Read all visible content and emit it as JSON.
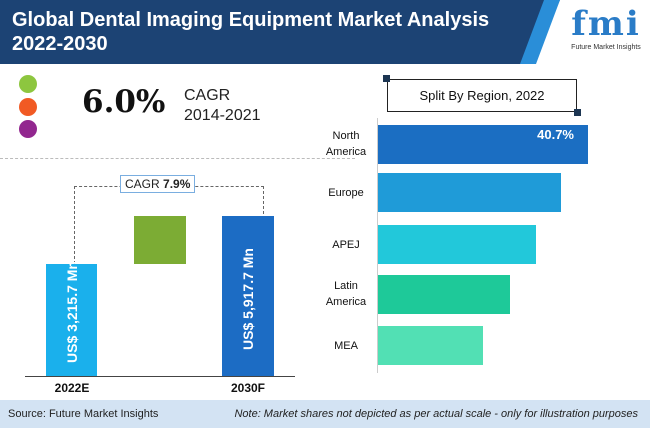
{
  "header": {
    "title": "Global Dental Imaging Equipment Market Analysis 2022-2030"
  },
  "logo": {
    "text": "fmi",
    "subtitle": "Future Market Insights"
  },
  "legend_dots": [
    "#8dc63f",
    "#f15a24",
    "#92278f"
  ],
  "cagr_hist": {
    "value": "6.0%",
    "label": "CAGR",
    "period": "2014-2021"
  },
  "chart_data": [
    {
      "type": "bar",
      "categories": [
        "2022E",
        "2030F"
      ],
      "values": [
        3215.7,
        5917.7
      ],
      "value_labels": [
        "US$ 3,215.7 Mn",
        "US$ 5,917.7 Mn"
      ],
      "annotation": {
        "label": "CAGR",
        "value": "7.9%"
      },
      "colors": [
        "#1ab0ec",
        "#1c6cc4",
        "#7cac34"
      ]
    },
    {
      "type": "bar",
      "orientation": "horizontal",
      "title": "Split By Region, 2022",
      "categories": [
        "North America",
        "Europe",
        "APEJ",
        "Latin America",
        "MEA"
      ],
      "values": [
        40.7,
        null,
        null,
        null,
        null
      ],
      "data_labels": [
        "40.7%",
        "",
        "",
        "",
        ""
      ],
      "colors": [
        "#1b6ec2",
        "#1f9bd8",
        "#22c8da",
        "#1ec999",
        "#52e0b4"
      ]
    }
  ],
  "footer": {
    "source": "Source: Future Market Insights",
    "note": "Note: Market shares not depicted as per actual scale - only for illustration purposes"
  }
}
